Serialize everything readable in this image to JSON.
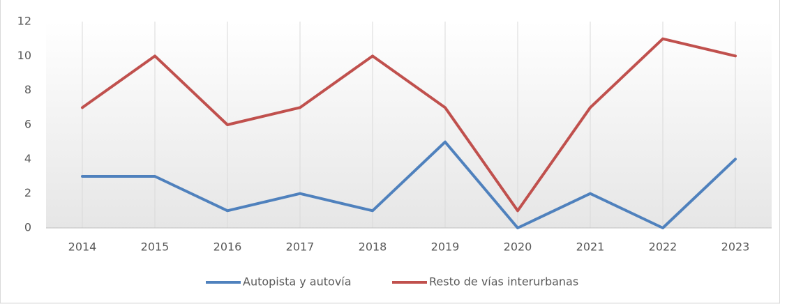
{
  "chart_data": {
    "type": "line",
    "categories": [
      "2014",
      "2015",
      "2016",
      "2017",
      "2018",
      "2019",
      "2020",
      "2021",
      "2022",
      "2023"
    ],
    "series": [
      {
        "name": "Autopista y autovía",
        "color": "#4f81bd",
        "values": [
          3,
          3,
          1,
          2,
          1,
          5,
          0,
          2,
          0,
          4
        ]
      },
      {
        "name": "Resto de vías interurbanas",
        "color": "#c0504d",
        "values": [
          7,
          10,
          6,
          7,
          10,
          7,
          1,
          7,
          11,
          10
        ]
      }
    ],
    "ylim": [
      0,
      12
    ],
    "yticks": [
      0,
      2,
      4,
      6,
      8,
      10,
      12
    ],
    "grid": "x",
    "legend": "bottom"
  }
}
